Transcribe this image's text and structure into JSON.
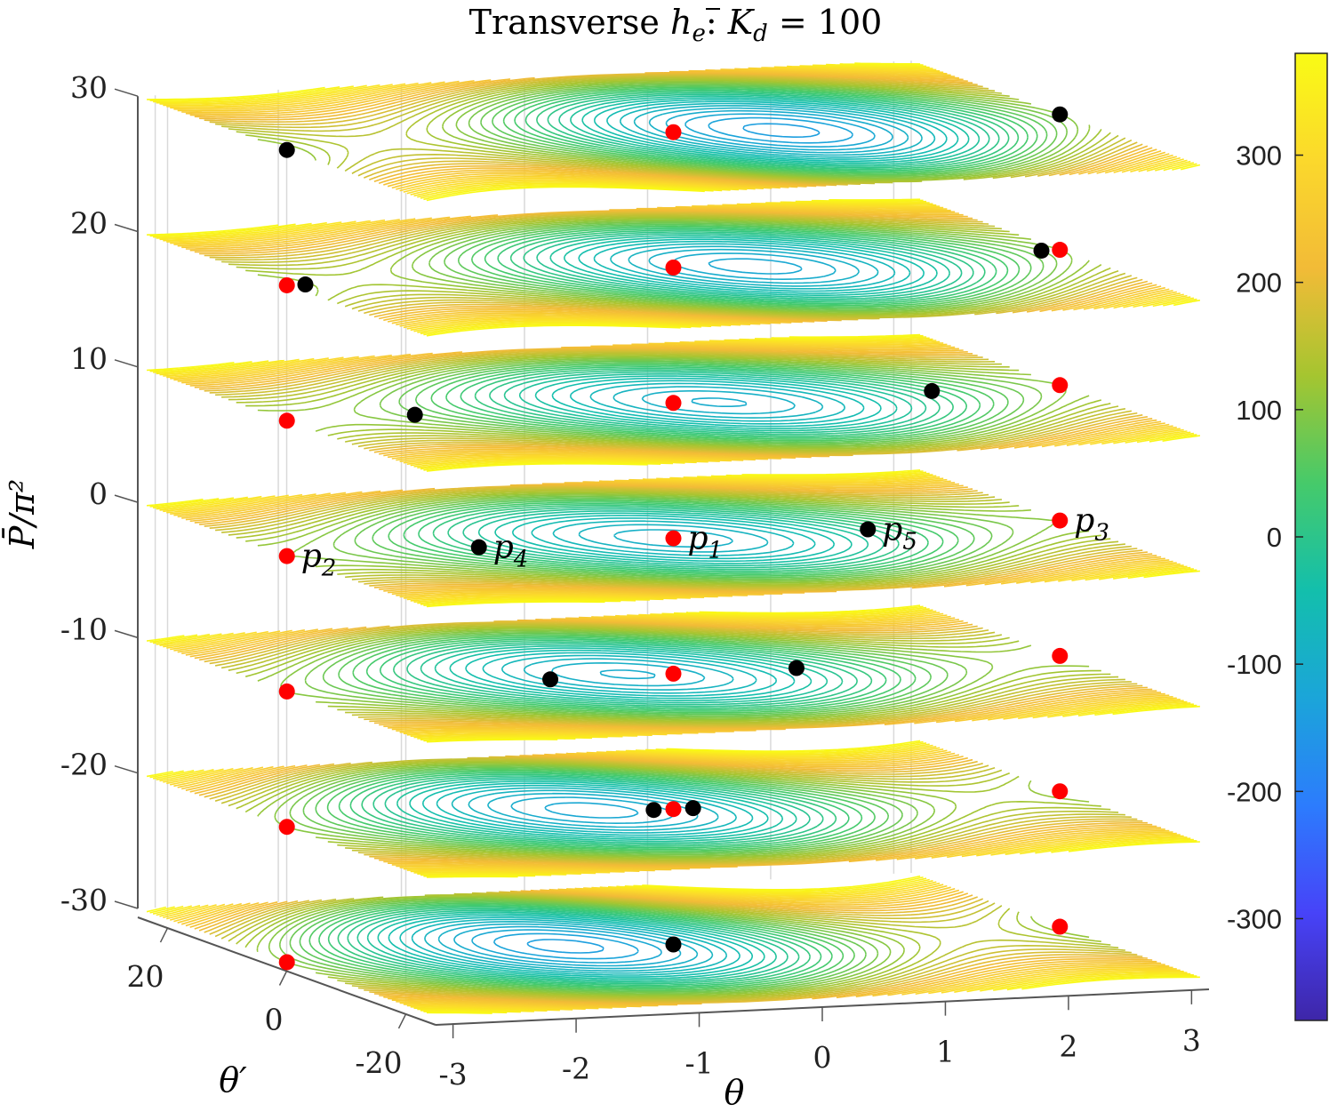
{
  "chart_data": {
    "type": "contour-slices-3d",
    "title_text": "Transverse ",
    "title_var": "h",
    "title_sub": "e",
    "title_mid": ": ",
    "title_K": "K",
    "title_Ksub": "d",
    "title_eq": " = 100",
    "xlabel": "θ",
    "ylabel": "θ′",
    "zlabel": "P̄/π²",
    "x_range": [
      -3.14159,
      3.14159
    ],
    "y_range": [
      -25,
      25
    ],
    "z_range": [
      -30,
      30
    ],
    "x_ticks": [
      -3,
      -2,
      -1,
      0,
      1,
      2,
      3
    ],
    "x_tick_labels": [
      "-3",
      "-2",
      "-1",
      "0",
      "1",
      "2",
      "3"
    ],
    "y_ticks": [
      20,
      0,
      -20
    ],
    "y_tick_labels": [
      "20",
      "0",
      "-20"
    ],
    "z_ticks": [
      30,
      20,
      10,
      0,
      -10,
      -20,
      -30
    ],
    "z_tick_labels": [
      "30",
      "20",
      "10",
      "0",
      "-10",
      "-20",
      "-30"
    ],
    "slices": [
      30,
      20,
      10,
      0,
      -10,
      -20,
      -30
    ],
    "colorbar": {
      "range": [
        -380,
        380
      ],
      "ticks": [
        300,
        200,
        100,
        0,
        -100,
        -200,
        -300
      ],
      "tick_labels": [
        "300",
        "200",
        "100",
        "0",
        "-100",
        "-200",
        "-300"
      ],
      "colormap": "parula",
      "colors": [
        "#3e26a8",
        "#4743f8",
        "#2c7cfd",
        "#1ba5d9",
        "#13bfac",
        "#46ca6a",
        "#a5c530",
        "#f2bb37",
        "#fbd82c",
        "#f9fb15"
      ]
    },
    "equilibria": {
      "red": [
        {
          "z": 30,
          "theta": 0.0,
          "dtheta": 0
        },
        {
          "z": 20,
          "theta": 0.0,
          "dtheta": 0
        },
        {
          "z": 20,
          "theta": -3.14,
          "dtheta": 0
        },
        {
          "z": 20,
          "theta": 3.14,
          "dtheta": 0
        },
        {
          "z": 10,
          "theta": 0.0,
          "dtheta": 0
        },
        {
          "z": 10,
          "theta": -3.14,
          "dtheta": 0
        },
        {
          "z": 10,
          "theta": 3.14,
          "dtheta": 0
        },
        {
          "z": 0,
          "theta": 0.0,
          "dtheta": 0,
          "label": "p",
          "sub": "1"
        },
        {
          "z": 0,
          "theta": -3.14,
          "dtheta": 0,
          "label": "p",
          "sub": "2"
        },
        {
          "z": 0,
          "theta": 3.14,
          "dtheta": 0,
          "label": "p",
          "sub": "3"
        },
        {
          "z": -10,
          "theta": 0.0,
          "dtheta": 0
        },
        {
          "z": -10,
          "theta": -3.14,
          "dtheta": 0
        },
        {
          "z": -10,
          "theta": 3.14,
          "dtheta": 0
        },
        {
          "z": -20,
          "theta": 0.0,
          "dtheta": 0
        },
        {
          "z": -20,
          "theta": -3.14,
          "dtheta": 0
        },
        {
          "z": -20,
          "theta": 3.14,
          "dtheta": 0
        },
        {
          "z": -30,
          "theta": -3.14,
          "dtheta": 0
        },
        {
          "z": -30,
          "theta": 3.14,
          "dtheta": 0
        }
      ],
      "black": [
        {
          "z": 30,
          "theta": -3.14,
          "dtheta": 0
        },
        {
          "z": 30,
          "theta": 3.14,
          "dtheta": 0
        },
        {
          "z": 20,
          "theta": -2.99,
          "dtheta": 0
        },
        {
          "z": 20,
          "theta": 2.99,
          "dtheta": 0
        },
        {
          "z": 10,
          "theta": -2.1,
          "dtheta": 0
        },
        {
          "z": 10,
          "theta": 2.1,
          "dtheta": 0
        },
        {
          "z": 0,
          "theta": -1.58,
          "dtheta": 0,
          "label": "p",
          "sub": "4"
        },
        {
          "z": 0,
          "theta": 1.58,
          "dtheta": 0,
          "label": "p",
          "sub": "5"
        },
        {
          "z": -10,
          "theta": -1.0,
          "dtheta": 0
        },
        {
          "z": -10,
          "theta": 1.0,
          "dtheta": 0
        },
        {
          "z": -20,
          "theta": -0.16,
          "dtheta": 0
        },
        {
          "z": -20,
          "theta": 0.16,
          "dtheta": 0
        },
        {
          "z": -30,
          "theta": 0.0,
          "dtheta": 0
        }
      ]
    }
  }
}
